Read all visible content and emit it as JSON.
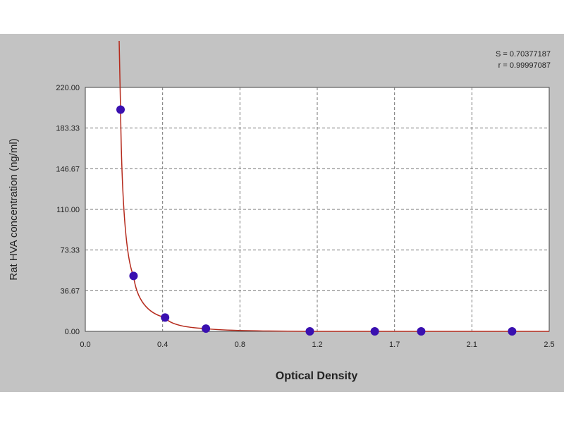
{
  "chart_data": {
    "type": "scatter",
    "xlabel": "Optical Density",
    "ylabel": "Rat HVA concentration (ng/ml)",
    "xlim": [
      0.0,
      2.5
    ],
    "ylim": [
      0.0,
      220.0
    ],
    "x_ticks": [
      "0.0",
      "0.4",
      "0.8",
      "1.2",
      "1.7",
      "2.1",
      "2.5"
    ],
    "y_ticks": [
      "0.00",
      "36.67",
      "73.33",
      "110.00",
      "146.67",
      "183.33",
      "220.00"
    ],
    "grid": true,
    "stats": [
      "S = 0.70377187",
      "r = 0.99997087"
    ],
    "points": {
      "x": [
        0.19,
        0.26,
        0.43,
        0.65,
        1.21,
        1.56,
        1.81,
        2.3
      ],
      "y": [
        200.0,
        50.0,
        12.5,
        2.5,
        0.0,
        0.0,
        0.0,
        0.0
      ]
    },
    "point_color": "#3a10b0",
    "curve_color": "#b52a1c"
  }
}
